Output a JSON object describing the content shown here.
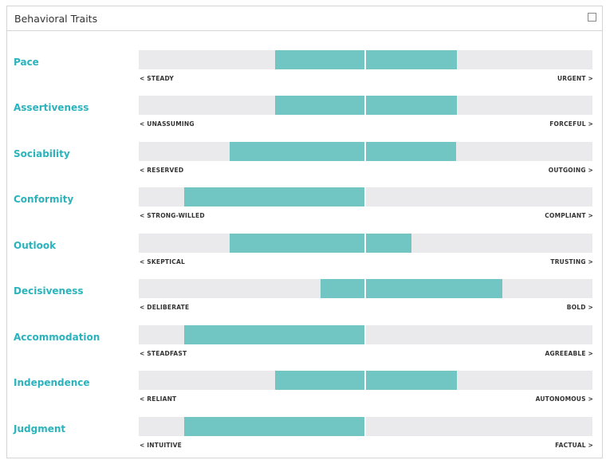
{
  "panel": {
    "title": "Behavioral Traits"
  },
  "traits": [
    {
      "name": "Pace",
      "left_label": "< STEADY",
      "right_label": "URGENT >",
      "range": [
        0.3,
        0.7
      ]
    },
    {
      "name": "Assertiveness",
      "left_label": "< UNASSUMING",
      "right_label": "FORCEFUL >",
      "range": [
        0.3,
        0.7
      ]
    },
    {
      "name": "Sociability",
      "left_label": "< RESERVED",
      "right_label": "OUTGOING >",
      "range": [
        0.2,
        0.7
      ]
    },
    {
      "name": "Conformity",
      "left_label": "< STRONG-WILLED",
      "right_label": "COMPLIANT >",
      "range": [
        0.1,
        0.5
      ]
    },
    {
      "name": "Outlook",
      "left_label": "< SKEPTICAL",
      "right_label": "TRUSTING >",
      "range": [
        0.2,
        0.6
      ]
    },
    {
      "name": "Decisiveness",
      "left_label": "< DELIBERATE",
      "right_label": "BOLD >",
      "range": [
        0.4,
        0.8
      ]
    },
    {
      "name": "Accommodation",
      "left_label": "< STEADFAST",
      "right_label": "AGREEABLE >",
      "range": [
        0.1,
        0.5
      ]
    },
    {
      "name": "Independence",
      "left_label": "< RELIANT",
      "right_label": "AUTONOMOUS >",
      "range": [
        0.3,
        0.7
      ]
    },
    {
      "name": "Judgment",
      "left_label": "< INTUITIVE",
      "right_label": "FACTUAL >",
      "range": [
        0.1,
        0.5
      ]
    }
  ],
  "colors": {
    "accent": "#2bb3bd",
    "fill": "#71c5c2",
    "track": "#eae9eb"
  },
  "icons": {
    "collapse": "square-outline-icon"
  }
}
